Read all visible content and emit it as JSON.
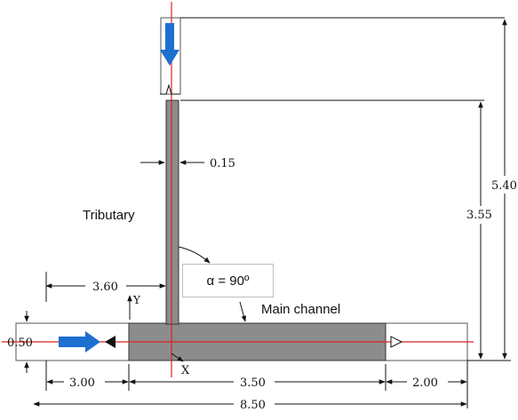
{
  "labels": {
    "tributary": "Tributary",
    "main_channel": "Main channel",
    "alpha": "α = 90º",
    "axis_x": "X",
    "axis_y": "Y"
  },
  "dimensions": {
    "tributary_width": "0.15",
    "tributary_offset": "3.60",
    "main_width": "0.50",
    "upstream_length": "3.00",
    "confluence_length": "3.50",
    "downstream_length": "2.00",
    "total_length": "8.50",
    "tributary_length": "3.55",
    "total_height": "5.40"
  },
  "colors": {
    "channel_fill": "#8c8c8c",
    "flow_arrow": "#1f6fd0",
    "axis_line": "#e02020",
    "dimension_line": "#111111"
  }
}
